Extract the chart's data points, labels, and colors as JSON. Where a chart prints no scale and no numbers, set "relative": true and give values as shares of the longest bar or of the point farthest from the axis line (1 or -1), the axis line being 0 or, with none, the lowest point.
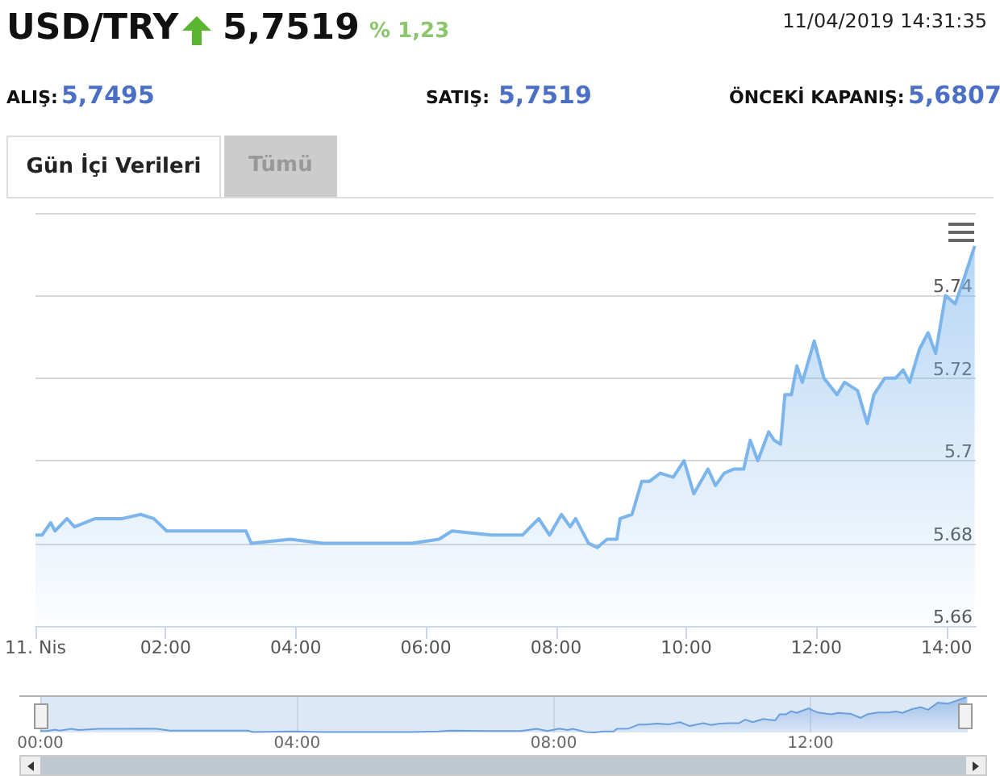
{
  "chart_data": [
    {
      "type": "area",
      "title": "USD/TRY",
      "annotations": [
        "5,7519",
        "% 1,23",
        "11/04/2019 14:31:35",
        "ALIŞ:",
        "5,7495",
        "SATIŞ:",
        "5,7519",
        "ÖNCEKİ KAPANIŞ:",
        "5,6807",
        "Gün İçi Verileri",
        "Tümü"
      ],
      "x": [
        "2019-04-11T00:00",
        "2019-04-11T00:06",
        "2019-04-11T00:14",
        "2019-04-11T00:18",
        "2019-04-11T00:29",
        "2019-04-11T00:36",
        "2019-04-11T00:55",
        "2019-04-11T01:20",
        "2019-04-11T01:37",
        "2019-04-11T01:49",
        "2019-04-11T02:01",
        "2019-04-11T03:14",
        "2019-04-11T03:19",
        "2019-04-11T03:55",
        "2019-04-11T04:25",
        "2019-04-11T05:00",
        "2019-04-11T05:47",
        "2019-04-11T06:12",
        "2019-04-11T06:24",
        "2019-04-11T07:00",
        "2019-04-11T07:29",
        "2019-04-11T07:44",
        "2019-04-11T07:54",
        "2019-04-11T08:05",
        "2019-04-11T08:13",
        "2019-04-11T08:18",
        "2019-04-11T08:30",
        "2019-04-11T08:38",
        "2019-04-11T08:47",
        "2019-04-11T08:56",
        "2019-04-11T08:59",
        "2019-04-11T09:10",
        "2019-04-11T09:19",
        "2019-04-11T09:26",
        "2019-04-11T09:36",
        "2019-04-11T09:48",
        "2019-04-11T09:58",
        "2019-04-11T10:07",
        "2019-04-11T10:20",
        "2019-04-11T10:27",
        "2019-04-11T10:35",
        "2019-04-11T10:44",
        "2019-04-11T10:53",
        "2019-04-11T10:59",
        "2019-04-11T11:06",
        "2019-04-11T11:16",
        "2019-04-11T11:21",
        "2019-04-11T11:27",
        "2019-04-11T11:31",
        "2019-04-11T11:37",
        "2019-04-11T11:42",
        "2019-04-11T11:47",
        "2019-04-11T11:58",
        "2019-04-11T12:07",
        "2019-04-11T12:19",
        "2019-04-11T12:26",
        "2019-04-11T12:38",
        "2019-04-11T12:47",
        "2019-04-11T12:53",
        "2019-04-11T13:03",
        "2019-04-11T13:13",
        "2019-04-11T13:20",
        "2019-04-11T13:26",
        "2019-04-11T13:35",
        "2019-04-11T13:43",
        "2019-04-11T13:50",
        "2019-04-11T13:59",
        "2019-04-11T14:08",
        "2019-04-11T14:16",
        "2019-04-11T14:26"
      ],
      "values": [
        5.682,
        5.682,
        5.685,
        5.683,
        5.686,
        5.684,
        5.686,
        5.686,
        5.687,
        5.686,
        5.683,
        5.683,
        5.68,
        5.681,
        5.68,
        5.68,
        5.68,
        5.681,
        5.683,
        5.682,
        5.682,
        5.686,
        5.682,
        5.687,
        5.684,
        5.686,
        5.68,
        5.679,
        5.681,
        5.681,
        5.686,
        5.687,
        5.695,
        5.695,
        5.697,
        5.696,
        5.7,
        5.692,
        5.698,
        5.694,
        5.697,
        5.698,
        5.698,
        5.705,
        5.7,
        5.707,
        5.705,
        5.704,
        5.716,
        5.716,
        5.723,
        5.719,
        5.729,
        5.72,
        5.716,
        5.719,
        5.717,
        5.709,
        5.716,
        5.72,
        5.72,
        5.722,
        5.719,
        5.727,
        5.731,
        5.726,
        5.74,
        5.738,
        5.744,
        5.752
      ],
      "color": "#7cb5ec",
      "marker": "none",
      "grid": "y",
      "xlim": [
        "2019-04-11T00:00",
        "2019-04-11T14:27"
      ],
      "xticks": [
        {
          "value": "2019-04-11T00:00",
          "label": "11. Nis"
        },
        {
          "value": "2019-04-11T02:00",
          "label": "02:00"
        },
        {
          "value": "2019-04-11T04:00",
          "label": "04:00"
        },
        {
          "value": "2019-04-11T06:00",
          "label": "06:00"
        },
        {
          "value": "2019-04-11T08:00",
          "label": "08:00"
        },
        {
          "value": "2019-04-11T10:00",
          "label": "10:00"
        },
        {
          "value": "2019-04-11T12:00",
          "label": "12:00"
        },
        {
          "value": "2019-04-11T14:00",
          "label": "14:00"
        }
      ],
      "ylim": [
        5.66,
        5.76
      ],
      "yticks": [
        5.66,
        5.68,
        5.7,
        5.72,
        5.74,
        {
          "value": 5.76,
          "label": null
        }
      ]
    },
    {
      "type": "area",
      "relative": true,
      "x": [
        "2019-04-11T00:00",
        "2019-04-11T00:06",
        "2019-04-11T00:14",
        "2019-04-11T00:18",
        "2019-04-11T00:29",
        "2019-04-11T00:36",
        "2019-04-11T00:55",
        "2019-04-11T01:20",
        "2019-04-11T01:37",
        "2019-04-11T01:49",
        "2019-04-11T02:01",
        "2019-04-11T03:14",
        "2019-04-11T03:19",
        "2019-04-11T03:55",
        "2019-04-11T04:25",
        "2019-04-11T05:00",
        "2019-04-11T05:47",
        "2019-04-11T06:12",
        "2019-04-11T06:24",
        "2019-04-11T07:00",
        "2019-04-11T07:29",
        "2019-04-11T07:44",
        "2019-04-11T07:54",
        "2019-04-11T08:05",
        "2019-04-11T08:13",
        "2019-04-11T08:18",
        "2019-04-11T08:30",
        "2019-04-11T08:38",
        "2019-04-11T08:47",
        "2019-04-11T08:56",
        "2019-04-11T08:59",
        "2019-04-11T09:10",
        "2019-04-11T09:19",
        "2019-04-11T09:26",
        "2019-04-11T09:36",
        "2019-04-11T09:48",
        "2019-04-11T09:58",
        "2019-04-11T10:07",
        "2019-04-11T10:20",
        "2019-04-11T10:27",
        "2019-04-11T10:35",
        "2019-04-11T10:44",
        "2019-04-11T10:53",
        "2019-04-11T10:59",
        "2019-04-11T11:06",
        "2019-04-11T11:16",
        "2019-04-11T11:21",
        "2019-04-11T11:27",
        "2019-04-11T11:31",
        "2019-04-11T11:37",
        "2019-04-11T11:42",
        "2019-04-11T11:47",
        "2019-04-11T11:58",
        "2019-04-11T12:07",
        "2019-04-11T12:19",
        "2019-04-11T12:26",
        "2019-04-11T12:38",
        "2019-04-11T12:47",
        "2019-04-11T12:53",
        "2019-04-11T13:03",
        "2019-04-11T13:13",
        "2019-04-11T13:20",
        "2019-04-11T13:26",
        "2019-04-11T13:35",
        "2019-04-11T13:43",
        "2019-04-11T13:50",
        "2019-04-11T13:59",
        "2019-04-11T14:08",
        "2019-04-11T14:16",
        "2019-04-11T14:26"
      ],
      "values": [
        0.04,
        0.04,
        0.08,
        0.05,
        0.1,
        0.07,
        0.1,
        0.1,
        0.11,
        0.1,
        0.05,
        0.05,
        0.01,
        0.03,
        0.01,
        0.01,
        0.01,
        0.03,
        0.05,
        0.04,
        0.04,
        0.1,
        0.04,
        0.11,
        0.07,
        0.1,
        0.01,
        0,
        0.03,
        0.03,
        0.1,
        0.11,
        0.22,
        0.22,
        0.25,
        0.23,
        0.29,
        0.18,
        0.26,
        0.21,
        0.25,
        0.26,
        0.26,
        0.36,
        0.29,
        0.38,
        0.36,
        0.34,
        0.51,
        0.51,
        0.6,
        0.55,
        0.68,
        0.56,
        0.51,
        0.55,
        0.52,
        0.41,
        0.51,
        0.56,
        0.56,
        0.59,
        0.55,
        0.66,
        0.71,
        0.64,
        0.84,
        0.81,
        0.89,
        1
      ],
      "color": "#6a9fdc",
      "marker": "none",
      "grid": "x",
      "tick_labels": "x",
      "xlim": [
        "2019-04-11T00:00",
        "2019-04-11T14:27"
      ],
      "xticks": [
        {
          "value": "2019-04-11T00:00",
          "label": "00:00"
        },
        {
          "value": "2019-04-11T04:00",
          "label": "04:00"
        },
        {
          "value": "2019-04-11T08:00",
          "label": "08:00"
        },
        {
          "value": "2019-04-11T12:00",
          "label": "12:00"
        }
      ]
    }
  ]
}
